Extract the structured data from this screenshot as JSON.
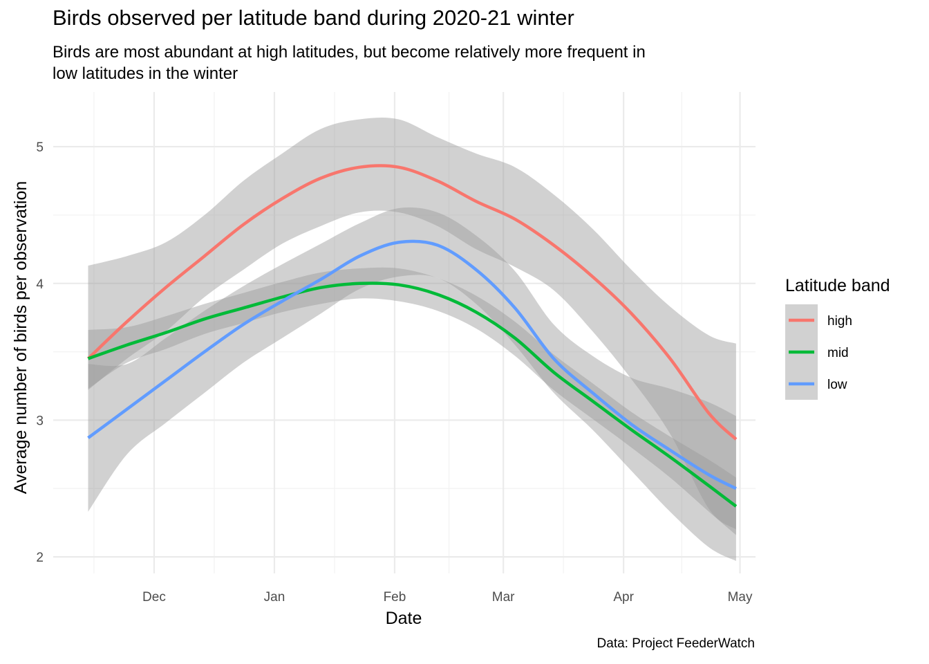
{
  "chart_data": {
    "type": "line",
    "title": "Birds observed per latitude band during 2020-21 winter",
    "subtitle": "Birds are most abundant at high latitudes, but become relatively more frequent in low latitudes in the winter",
    "caption": "Data: Project FeederWatch",
    "xlabel": "Date",
    "ylabel": "Average number of birds per observation",
    "xlim": [
      "2020-11-05",
      "2021-05-05"
    ],
    "ylim": [
      1.95,
      5.4
    ],
    "x_ticks": [
      {
        "date": "2020-12-01",
        "label": "Dec"
      },
      {
        "date": "2021-01-01",
        "label": "Jan"
      },
      {
        "date": "2021-02-01",
        "label": "Feb"
      },
      {
        "date": "2021-03-01",
        "label": "Mar"
      },
      {
        "date": "2021-04-01",
        "label": "Apr"
      },
      {
        "date": "2021-05-01",
        "label": "May"
      }
    ],
    "y_ticks": [
      2,
      3,
      4,
      5
    ],
    "grid": true,
    "legend": {
      "title": "Latitude band",
      "position": "right"
    },
    "series": [
      {
        "name": "high",
        "color": "#F8766D",
        "x": [
          "2020-11-14",
          "2020-11-24",
          "2020-12-04",
          "2020-12-14",
          "2020-12-24",
          "2021-01-03",
          "2021-01-13",
          "2021-01-23",
          "2021-02-02",
          "2021-02-12",
          "2021-02-22",
          "2021-03-04",
          "2021-03-14",
          "2021-03-24",
          "2021-04-03",
          "2021-04-13",
          "2021-04-23",
          "2021-04-30"
        ],
        "y": [
          3.45,
          3.72,
          3.97,
          4.2,
          4.43,
          4.62,
          4.77,
          4.85,
          4.85,
          4.75,
          4.6,
          4.47,
          4.28,
          4.05,
          3.78,
          3.45,
          3.05,
          2.86
        ],
        "lower": [
          3.22,
          3.45,
          3.65,
          3.9,
          4.1,
          4.29,
          4.42,
          4.52,
          4.52,
          4.42,
          4.25,
          4.12,
          3.95,
          3.65,
          3.3,
          2.9,
          2.35,
          2.2
        ],
        "upper": [
          4.13,
          4.2,
          4.3,
          4.5,
          4.75,
          4.95,
          5.13,
          5.2,
          5.2,
          5.07,
          4.95,
          4.85,
          4.65,
          4.4,
          4.1,
          3.83,
          3.62,
          3.56
        ]
      },
      {
        "name": "mid",
        "color": "#00BA38",
        "x": [
          "2020-11-14",
          "2020-11-24",
          "2020-12-04",
          "2020-12-14",
          "2020-12-24",
          "2021-01-03",
          "2021-01-13",
          "2021-01-23",
          "2021-02-02",
          "2021-02-12",
          "2021-02-22",
          "2021-03-04",
          "2021-03-14",
          "2021-03-24",
          "2021-04-03",
          "2021-04-13",
          "2021-04-23",
          "2021-04-30"
        ],
        "y": [
          3.45,
          3.55,
          3.64,
          3.74,
          3.82,
          3.9,
          3.97,
          4.0,
          3.99,
          3.92,
          3.79,
          3.6,
          3.35,
          3.14,
          2.93,
          2.73,
          2.52,
          2.37
        ],
        "lower": [
          3.23,
          3.42,
          3.52,
          3.63,
          3.71,
          3.79,
          3.85,
          3.89,
          3.87,
          3.8,
          3.67,
          3.47,
          3.22,
          3.01,
          2.8,
          2.58,
          2.33,
          2.16
        ],
        "upper": [
          3.66,
          3.68,
          3.76,
          3.85,
          3.93,
          4.01,
          4.08,
          4.11,
          4.11,
          4.04,
          3.91,
          3.72,
          3.48,
          3.27,
          3.06,
          2.88,
          2.71,
          2.58
        ]
      },
      {
        "name": "low",
        "color": "#619CFF",
        "x": [
          "2020-11-14",
          "2020-11-24",
          "2020-12-04",
          "2020-12-14",
          "2020-12-24",
          "2021-01-03",
          "2021-01-13",
          "2021-01-23",
          "2021-02-02",
          "2021-02-12",
          "2021-02-22",
          "2021-03-04",
          "2021-03-14",
          "2021-03-24",
          "2021-04-03",
          "2021-04-13",
          "2021-04-23",
          "2021-04-30"
        ],
        "y": [
          2.87,
          3.08,
          3.29,
          3.5,
          3.7,
          3.87,
          4.03,
          4.2,
          4.3,
          4.28,
          4.1,
          3.82,
          3.45,
          3.2,
          2.97,
          2.78,
          2.6,
          2.5
        ],
        "lower": [
          2.33,
          2.75,
          2.98,
          3.2,
          3.42,
          3.6,
          3.78,
          3.96,
          4.05,
          4.04,
          3.85,
          3.55,
          3.2,
          2.93,
          2.63,
          2.33,
          2.07,
          1.97
        ],
        "upper": [
          3.41,
          3.41,
          3.6,
          3.8,
          3.98,
          4.14,
          4.29,
          4.44,
          4.55,
          4.52,
          4.35,
          4.09,
          3.7,
          3.47,
          3.31,
          3.23,
          3.13,
          3.03
        ]
      }
    ]
  }
}
